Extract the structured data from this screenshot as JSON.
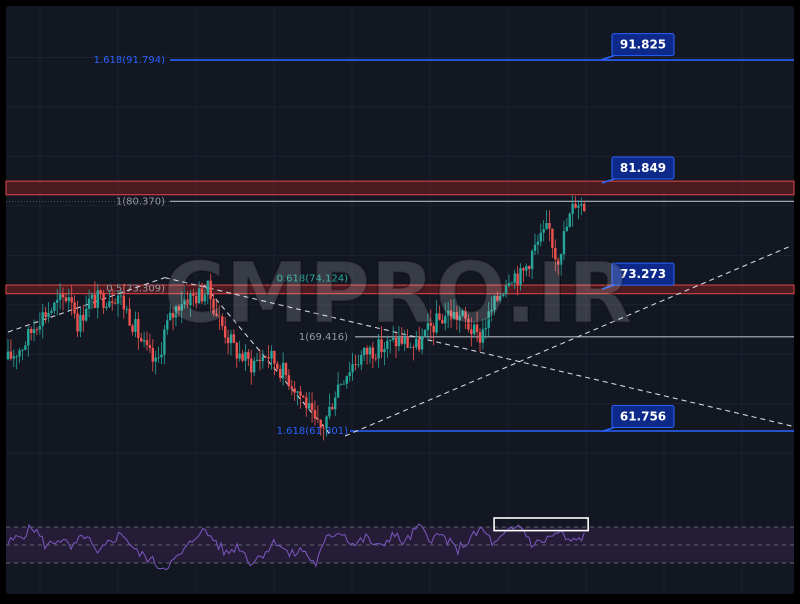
{
  "watermark": "CMPRO.IR",
  "chart_data": {
    "type": "candlestick",
    "colors": {
      "background": "#131722",
      "up": "#26a69a",
      "down": "#ef5350",
      "fib_blue": "#2962ff",
      "zone_fill": "#7a1f22",
      "zone_border": "#e0484a",
      "gray_level": "#b2b5be",
      "rsi_line": "#7e57c2",
      "rsi_band": "#2a1f3d",
      "highlight_box": "#ffffff"
    },
    "price_axis_range": [
      58.0,
      96.0
    ],
    "horizontal_levels": [
      {
        "label": "1.618(91.794)",
        "value": 91.794,
        "style": "blue"
      },
      {
        "label": "1(80.370)",
        "value": 80.37,
        "style": "gray"
      },
      {
        "label": "0.618(74.124)",
        "value": 74.124,
        "style": "none"
      },
      {
        "label": "0.5(73.309)",
        "value": 73.309,
        "style": "none"
      },
      {
        "label": "1(69.416)",
        "value": 69.416,
        "style": "gray"
      },
      {
        "label": "1.618(61.801)",
        "value": 61.801,
        "style": "blue"
      }
    ],
    "resistance_zones": [
      {
        "low": 80.9,
        "high": 82.0
      },
      {
        "low": 72.9,
        "high": 73.6
      }
    ],
    "price_tags": [
      {
        "text": "91.825",
        "value": 91.825
      },
      {
        "text": "81.849",
        "value": 81.849
      },
      {
        "text": "73.273",
        "value": 73.273
      },
      {
        "text": "61.756",
        "value": 61.756
      }
    ],
    "trendlines": [
      {
        "from": [
          0.0,
          69.8
        ],
        "to": [
          0.2,
          74.2
        ],
        "style": "dashed"
      },
      {
        "from": [
          0.2,
          74.2
        ],
        "to": [
          1.0,
          62.2
        ],
        "style": "dashed"
      },
      {
        "from": [
          0.25,
          73.6
        ],
        "to": [
          0.41,
          61.6
        ],
        "style": "dashed"
      },
      {
        "from": [
          0.43,
          61.4
        ],
        "to": [
          1.0,
          76.8
        ],
        "style": "dashed"
      }
    ],
    "candles_close_path": [
      [
        0.0,
        67.6
      ],
      [
        0.02,
        68.8
      ],
      [
        0.04,
        71.0
      ],
      [
        0.06,
        71.9
      ],
      [
        0.08,
        73.0
      ],
      [
        0.09,
        70.2
      ],
      [
        0.1,
        72.2
      ],
      [
        0.12,
        72.5
      ],
      [
        0.14,
        72.9
      ],
      [
        0.155,
        71.1
      ],
      [
        0.175,
        68.4
      ],
      [
        0.19,
        67.0
      ],
      [
        0.2,
        70.0
      ],
      [
        0.22,
        72.4
      ],
      [
        0.245,
        72.8
      ],
      [
        0.255,
        73.2
      ],
      [
        0.27,
        70.7
      ],
      [
        0.29,
        68.3
      ],
      [
        0.31,
        67.2
      ],
      [
        0.33,
        68.1
      ],
      [
        0.35,
        66.7
      ],
      [
        0.365,
        65.5
      ],
      [
        0.38,
        64.1
      ],
      [
        0.39,
        62.4
      ],
      [
        0.4,
        61.9
      ],
      [
        0.41,
        63.5
      ],
      [
        0.42,
        65.5
      ],
      [
        0.44,
        67.3
      ],
      [
        0.46,
        68.3
      ],
      [
        0.48,
        68.6
      ],
      [
        0.5,
        69.2
      ],
      [
        0.52,
        68.5
      ],
      [
        0.54,
        70.2
      ],
      [
        0.56,
        71.3
      ],
      [
        0.58,
        71.0
      ],
      [
        0.6,
        69.2
      ],
      [
        0.61,
        70.6
      ],
      [
        0.63,
        73.3
      ],
      [
        0.64,
        74.6
      ],
      [
        0.655,
        74.3
      ],
      [
        0.67,
        76.4
      ],
      [
        0.69,
        78.2
      ],
      [
        0.7,
        75.6
      ],
      [
        0.715,
        78.8
      ],
      [
        0.725,
        80.6
      ],
      [
        0.735,
        79.9
      ]
    ],
    "rsi": {
      "band_upper": 70,
      "band_lower": 30,
      "mid": 50,
      "values": [
        52,
        60,
        70,
        48,
        58,
        45,
        62,
        38,
        55,
        63,
        42,
        35,
        25,
        32,
        47,
        67,
        58,
        40,
        50,
        30,
        42,
        55,
        38,
        45,
        28,
        60,
        66,
        50,
        58,
        46,
        62,
        52,
        70,
        58,
        60,
        44,
        55,
        68,
        50,
        63,
        72,
        50,
        56,
        64,
        52,
        60
      ]
    },
    "highlight_box": {
      "x_range": [
        0.62,
        0.74
      ],
      "rsi_range": [
        66,
        80
      ]
    }
  }
}
